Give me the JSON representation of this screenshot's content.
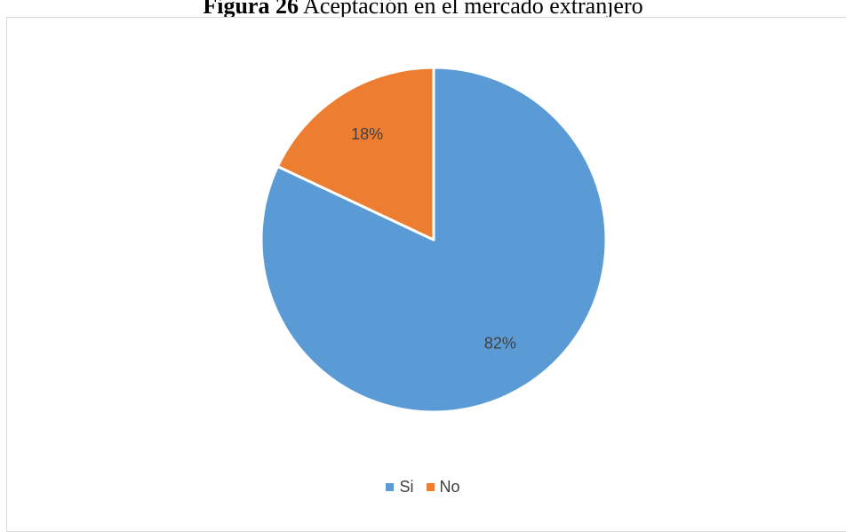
{
  "caption": {
    "label": "Figura 26",
    "text": "Aceptación en el mercado extranjero"
  },
  "chart_data": {
    "type": "pie",
    "categories": [
      "Si",
      "No"
    ],
    "values": [
      82,
      18
    ],
    "value_labels": [
      "82%",
      "18%"
    ],
    "colors": [
      "#5b9bd5",
      "#ed7d31"
    ],
    "start_angle": "12 o'clock",
    "direction": "clockwise",
    "legend_position": "bottom"
  }
}
